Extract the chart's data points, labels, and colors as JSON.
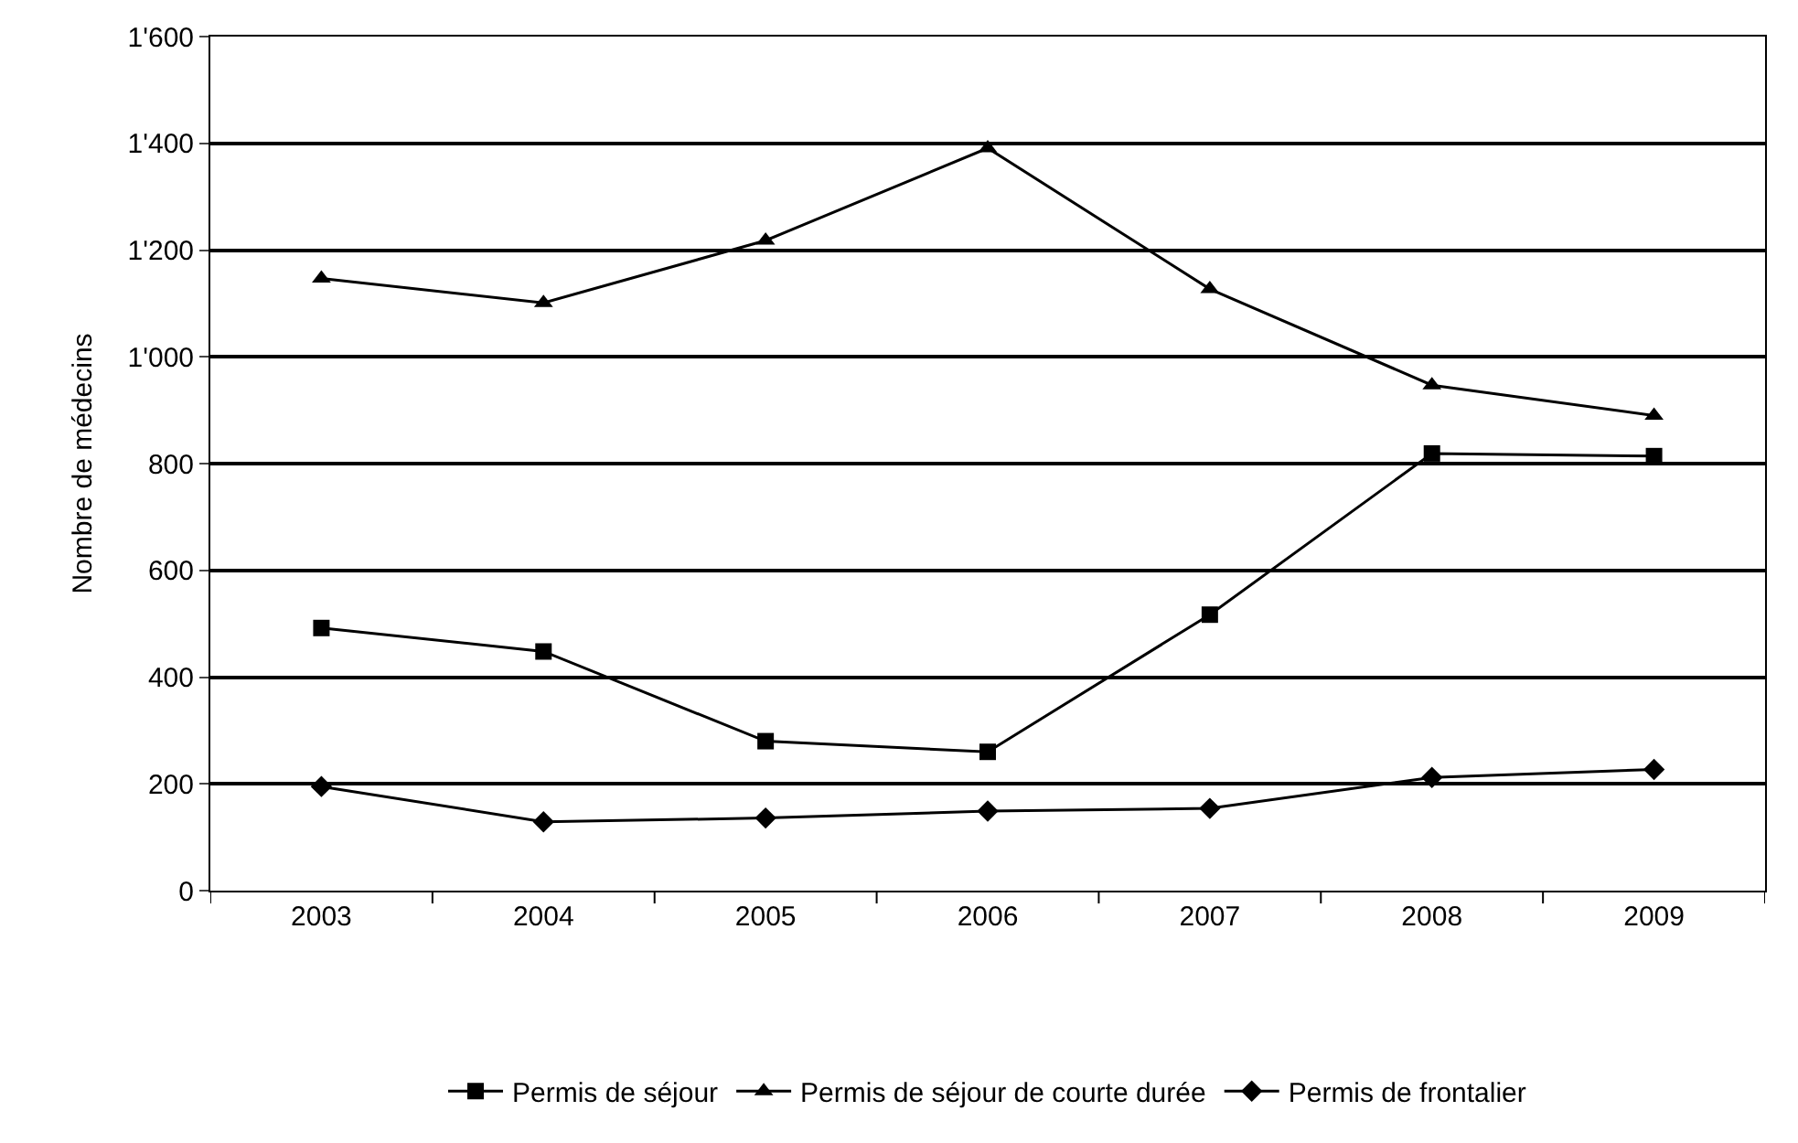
{
  "chart_data": {
    "type": "line",
    "ylabel": "Nombre de médecins",
    "categories": [
      "2003",
      "2004",
      "2005",
      "2006",
      "2007",
      "2008",
      "2009"
    ],
    "series": [
      {
        "name": "Permis de séjour",
        "color": "#000000",
        "marker": "square",
        "values": [
          492,
          448,
          280,
          260,
          517,
          819,
          814
        ]
      },
      {
        "name": "Permis de séjour de courte durée",
        "color": "#000000",
        "marker": "triangle",
        "values": [
          1147,
          1101,
          1218,
          1391,
          1127,
          947,
          890
        ]
      },
      {
        "name": "Permis de frontalier",
        "color": "#000000",
        "marker": "diamond",
        "values": [
          195,
          129,
          136,
          149,
          154,
          212,
          227
        ]
      }
    ],
    "ylim": [
      0,
      1600
    ],
    "yticks": [
      0,
      200,
      400,
      600,
      800,
      {
        "value": 1000,
        "label": "1'000"
      },
      {
        "value": 1200,
        "label": "1'200"
      },
      {
        "value": 1400,
        "label": "1'400"
      },
      {
        "value": 1600,
        "label": "1'600"
      }
    ],
    "grid": "y",
    "legend": "bottom",
    "line_style": "solid"
  }
}
